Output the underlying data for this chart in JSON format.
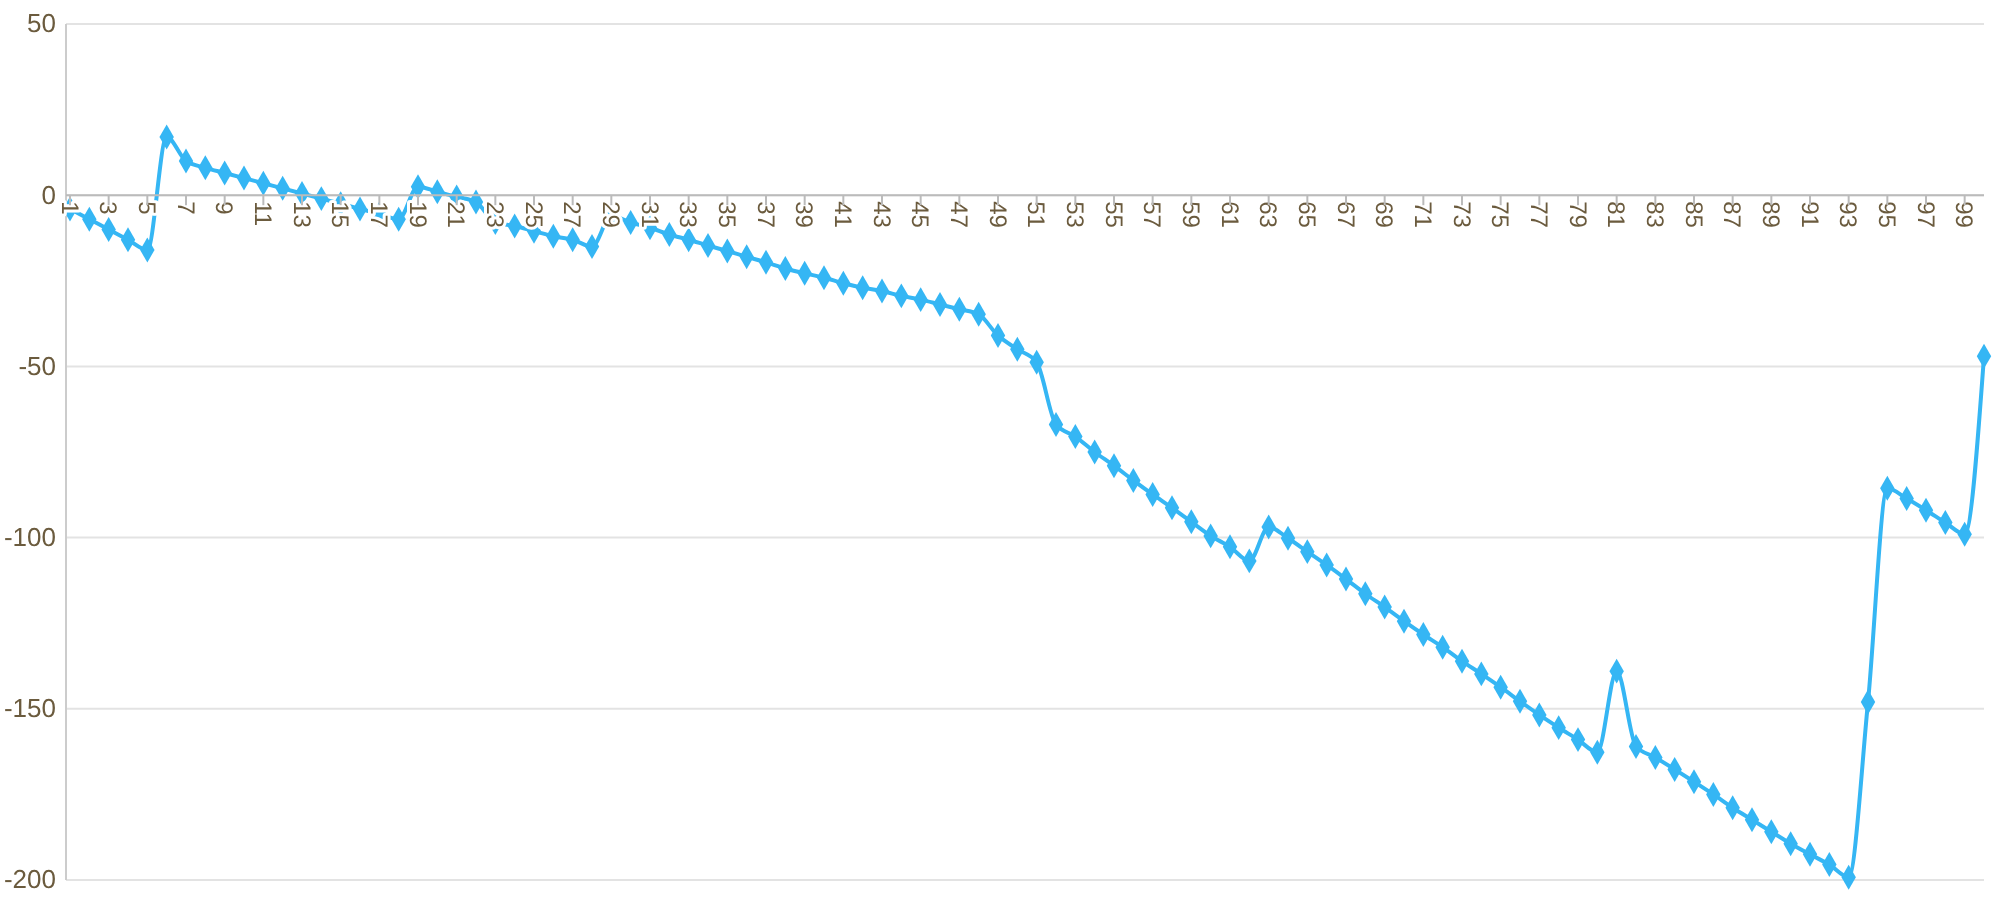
{
  "chart_data": {
    "type": "line",
    "categories": [
      "1",
      null,
      "3",
      null,
      "5",
      null,
      "7",
      null,
      "9",
      null,
      "11",
      null,
      "13",
      null,
      "15",
      null,
      "17",
      null,
      "19",
      null,
      "21",
      null,
      "23",
      null,
      "25",
      null,
      "27",
      null,
      "29",
      null,
      "31",
      null,
      "33",
      null,
      "35",
      null,
      "37",
      null,
      "39",
      null,
      "41",
      null,
      "43",
      null,
      "45",
      null,
      "47",
      null,
      "49",
      null,
      "51",
      null,
      "53",
      null,
      "55",
      null,
      "57",
      null,
      "59",
      null,
      "61",
      null,
      "63",
      null,
      "65",
      null,
      "67",
      null,
      "69",
      null,
      "71",
      null,
      "73",
      null,
      "75",
      null,
      "77",
      null,
      "79",
      null,
      "81",
      null,
      "83",
      null,
      "85",
      null,
      "87",
      null,
      "89",
      null,
      "91",
      null,
      "93",
      null,
      "95",
      null,
      "97",
      null,
      "99",
      null
    ],
    "series": [
      {
        "color": "#35b6f4",
        "values": [
          -4,
          -7,
          -10,
          -13,
          -16,
          17,
          10,
          8,
          6.5,
          5,
          3.5,
          2,
          0.5,
          -1,
          -2.5,
          -4,
          -5.5,
          -7,
          2.5,
          1,
          -0.5,
          -2,
          -8,
          -9,
          -10.5,
          -12,
          -13,
          -15,
          -6,
          -8,
          -9.5,
          -11.5,
          -13,
          -14.7,
          -16.3,
          -18,
          -19.6,
          -21.4,
          -22.8,
          -24.1,
          -25.7,
          -27,
          -28,
          -29.4,
          -30.5,
          -31.9,
          -33.3,
          -34.8,
          -41,
          -45,
          -48.8,
          -67,
          -70.5,
          -75,
          -79,
          -83.3,
          -87.4,
          -91.3,
          -95.4,
          -99.5,
          -102.7,
          -106.8,
          -96.9,
          -100.2,
          -104.1,
          -108,
          -112.1,
          -116.4,
          -120.3,
          -124.4,
          -128.3,
          -132,
          -136.1,
          -139.8,
          -143.7,
          -147.8,
          -151.8,
          -155.5,
          -159,
          -162.7,
          -139,
          -161,
          -164.2,
          -167.7,
          -171.3,
          -175,
          -178.9,
          -182.4,
          -185.9,
          -189.4,
          -192.5,
          -195.5,
          -199.2,
          -148,
          -85.6,
          -88.6,
          -92,
          -95.6,
          -99,
          -47
        ]
      }
    ],
    "ylim": [
      -200,
      50
    ],
    "yticks": [
      -200,
      -150,
      -100,
      -50,
      0,
      50
    ],
    "grid": "y",
    "marker": "diamond",
    "line_style": "solid"
  }
}
